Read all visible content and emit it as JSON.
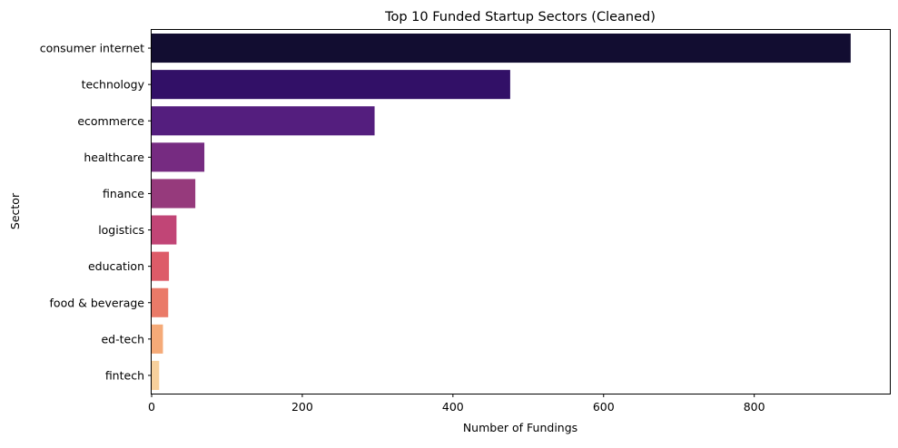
{
  "chart_data": {
    "type": "bar",
    "orientation": "horizontal",
    "title": "Top 10 Funded Startup Sectors (Cleaned)",
    "xlabel": "Number of Fundings",
    "ylabel": "Sector",
    "categories": [
      "consumer internet",
      "technology",
      "ecommerce",
      "healthcare",
      "finance",
      "logistics",
      "education",
      "food & beverage",
      "ed-tech",
      "fintech"
    ],
    "values": [
      928,
      476,
      296,
      70,
      58,
      33,
      23,
      22,
      15,
      10
    ],
    "colors": [
      "#120d31",
      "#321067",
      "#541e7e",
      "#762b81",
      "#963a7c",
      "#c14576",
      "#dd5b68",
      "#ea7a68",
      "#f5aa78",
      "#f7d09c"
    ],
    "xticks": [
      0,
      200,
      400,
      600,
      800
    ],
    "xlim": [
      0,
      980
    ],
    "grid": false,
    "legend": "none"
  }
}
